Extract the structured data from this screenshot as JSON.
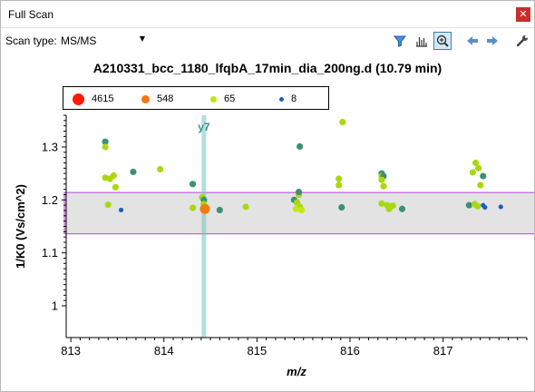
{
  "window": {
    "title": "Full Scan",
    "close_glyph": "✕"
  },
  "toolbar": {
    "scan_type_label": "Scan type:",
    "scan_type_value": "MS/MS",
    "icons": [
      "filter-icon",
      "spectrum-bars-icon",
      "zoom-icon",
      "back-arrow-icon",
      "forward-arrow-icon",
      "wrench-icon"
    ]
  },
  "chart_data": {
    "type": "scatter",
    "title": "A210331_bcc_1180_lfqbA_17min_dia_200ng.d  (10.79 min)",
    "xlabel": "m/z",
    "ylabel": "1/K0 (Vs/cm^2)",
    "xlim": [
      812.95,
      817.9
    ],
    "ylim": [
      0.94,
      1.36
    ],
    "xticks": [
      813,
      814,
      815,
      816,
      817
    ],
    "yticks": [
      1,
      1.1,
      1.2,
      1.3
    ],
    "grid": false,
    "legend_position": "top-left",
    "legend": [
      {
        "label": "4615",
        "color": "#ff1a0a"
      },
      {
        "label": "548",
        "color": "#f5770f"
      },
      {
        "label": "65",
        "color": "#b8e815"
      },
      {
        "label": "8",
        "color": "#1c5fc2"
      }
    ],
    "selection_band": {
      "y0": 1.136,
      "y1": 1.214,
      "fill": "#e3e3e3",
      "stroke": "#c05ed6"
    },
    "marker_line": {
      "x": 814.43,
      "label": "y7",
      "color": "#74c4c0"
    },
    "points": [
      {
        "x": 813.37,
        "y": 1.31,
        "c": "#3c9170"
      },
      {
        "x": 813.37,
        "y": 1.3,
        "c": "#a8d811"
      },
      {
        "x": 813.37,
        "y": 1.242,
        "c": "#a8d811"
      },
      {
        "x": 813.42,
        "y": 1.24,
        "c": "#a8d811"
      },
      {
        "x": 813.46,
        "y": 1.246,
        "c": "#a8d811"
      },
      {
        "x": 813.48,
        "y": 1.224,
        "c": "#a8d811"
      },
      {
        "x": 813.4,
        "y": 1.191,
        "c": "#a8d811"
      },
      {
        "x": 813.54,
        "y": 1.181,
        "c": "#1c5fc2"
      },
      {
        "x": 813.67,
        "y": 1.253,
        "c": "#3c9170"
      },
      {
        "x": 813.96,
        "y": 1.258,
        "c": "#a8d811"
      },
      {
        "x": 814.31,
        "y": 1.23,
        "c": "#3c9170"
      },
      {
        "x": 814.31,
        "y": 1.185,
        "c": "#a8d811"
      },
      {
        "x": 814.41,
        "y": 1.205,
        "c": "#a8d811"
      },
      {
        "x": 814.43,
        "y": 1.2,
        "c": "#3c9170"
      },
      {
        "x": 814.43,
        "y": 1.192,
        "c": "#a8d811"
      },
      {
        "x": 814.45,
        "y": 1.187,
        "c": "#c6e810"
      },
      {
        "x": 814.44,
        "y": 1.182,
        "c": "#f07d0a"
      },
      {
        "x": 814.45,
        "y": 1.185,
        "c": "#ff8a14"
      },
      {
        "x": 814.6,
        "y": 1.181,
        "c": "#3c9170"
      },
      {
        "x": 814.88,
        "y": 1.187,
        "c": "#a8d811"
      },
      {
        "x": 815.4,
        "y": 1.2,
        "c": "#3c9170"
      },
      {
        "x": 815.43,
        "y": 1.195,
        "c": "#a8d811"
      },
      {
        "x": 815.45,
        "y": 1.21,
        "c": "#a8d811"
      },
      {
        "x": 815.45,
        "y": 1.215,
        "c": "#3c9170"
      },
      {
        "x": 815.46,
        "y": 1.301,
        "c": "#3c9170"
      },
      {
        "x": 815.46,
        "y": 1.187,
        "c": "#a8d811"
      },
      {
        "x": 815.42,
        "y": 1.183,
        "c": "#c6e810"
      },
      {
        "x": 815.48,
        "y": 1.181,
        "c": "#c6e810"
      },
      {
        "x": 815.88,
        "y": 1.24,
        "c": "#a8d811"
      },
      {
        "x": 815.88,
        "y": 1.228,
        "c": "#a8d811"
      },
      {
        "x": 815.92,
        "y": 1.347,
        "c": "#a8d811"
      },
      {
        "x": 815.91,
        "y": 1.186,
        "c": "#3c9170"
      },
      {
        "x": 816.34,
        "y": 1.25,
        "c": "#3c9170"
      },
      {
        "x": 816.34,
        "y": 1.245,
        "c": "#a8d811"
      },
      {
        "x": 816.36,
        "y": 1.245,
        "c": "#3c9170"
      },
      {
        "x": 816.34,
        "y": 1.238,
        "c": "#a8d811"
      },
      {
        "x": 816.36,
        "y": 1.226,
        "c": "#a8d811"
      },
      {
        "x": 816.34,
        "y": 1.193,
        "c": "#a8d811"
      },
      {
        "x": 816.4,
        "y": 1.19,
        "c": "#a8d811"
      },
      {
        "x": 816.42,
        "y": 1.183,
        "c": "#a8d811"
      },
      {
        "x": 816.46,
        "y": 1.189,
        "c": "#a8d811"
      },
      {
        "x": 816.56,
        "y": 1.183,
        "c": "#3c9170"
      },
      {
        "x": 817.28,
        "y": 1.19,
        "c": "#3c9170"
      },
      {
        "x": 817.32,
        "y": 1.252,
        "c": "#a8d811"
      },
      {
        "x": 817.35,
        "y": 1.27,
        "c": "#a8d811"
      },
      {
        "x": 817.38,
        "y": 1.26,
        "c": "#a8d811"
      },
      {
        "x": 817.4,
        "y": 1.228,
        "c": "#a8d811"
      },
      {
        "x": 817.43,
        "y": 1.245,
        "c": "#3c9170"
      },
      {
        "x": 817.34,
        "y": 1.192,
        "c": "#a8d811"
      },
      {
        "x": 817.37,
        "y": 1.188,
        "c": "#a8d811"
      },
      {
        "x": 817.43,
        "y": 1.19,
        "c": "#1c5fc2"
      },
      {
        "x": 817.45,
        "y": 1.186,
        "c": "#1c5fc2"
      },
      {
        "x": 817.62,
        "y": 1.187,
        "c": "#1c5fc2"
      }
    ],
    "large_points": [
      {
        "x": 814.44,
        "y": 1.183,
        "c": "#f07d0a",
        "size": "large"
      }
    ]
  }
}
